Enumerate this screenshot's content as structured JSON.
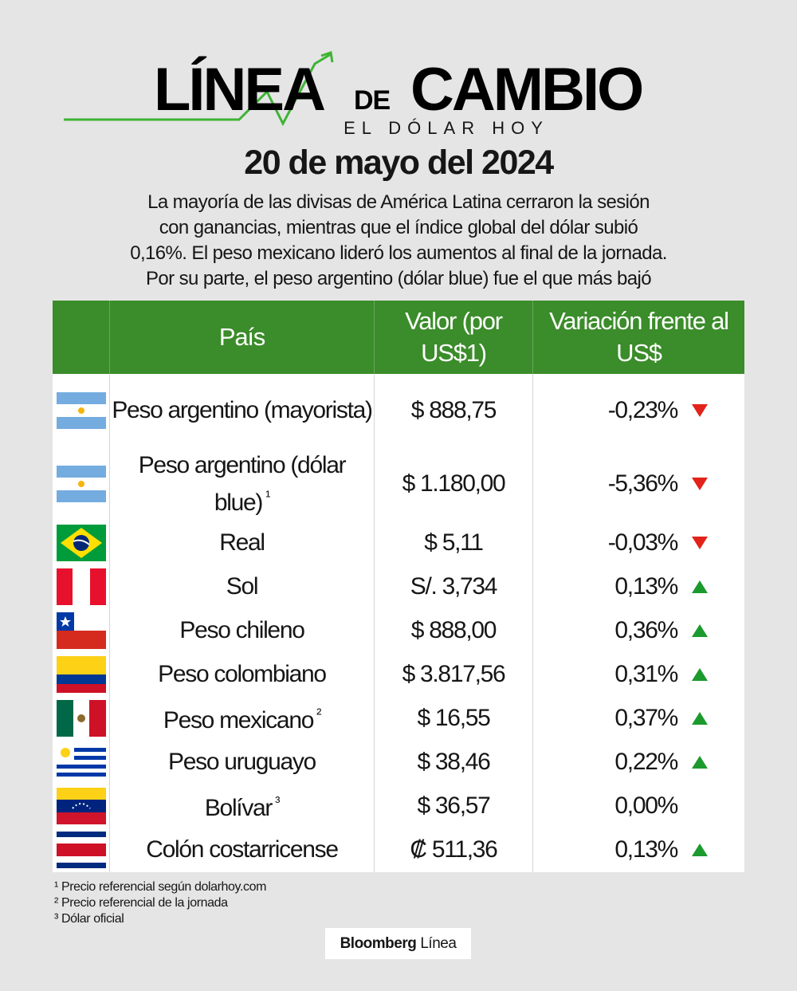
{
  "header": {
    "logo_word1": "LÍNEA",
    "logo_word2": "DE",
    "logo_word3": "CAMBIO",
    "logo_tagline": "EL DÓLAR HOY",
    "date": "20 de mayo del 2024",
    "description_lines": [
      "La mayoría de las divisas de América Latina cerraron la sesión",
      "con ganancias, mientras que el índice global del dólar subió",
      "0,16%. El peso mexicano lideró los aumentos al final de la jornada.",
      "Por su parte, el peso argentino (dólar blue) fue el que más bajó"
    ]
  },
  "table": {
    "columns": [
      "País",
      "Valor (por US$1)",
      "Variación frente al US$"
    ],
    "rows": [
      {
        "name": "Peso argentino (mayorista)",
        "value": "$ 888,75",
        "change": "-0,23%",
        "trend": "down"
      },
      {
        "name": "Peso argentino (dólar blue)",
        "note": "¹",
        "value": "$ 1.180,00",
        "change": "-5,36%",
        "trend": "down"
      },
      {
        "name": "Real",
        "value": "$ 5,11",
        "change": "-0,03%",
        "trend": "down"
      },
      {
        "name": "Sol",
        "value": "S/. 3,734",
        "change": "0,13%",
        "trend": "up"
      },
      {
        "name": "Peso chileno",
        "value": "$ 888,00",
        "change": "0,36%",
        "trend": "up"
      },
      {
        "name": "Peso colombiano",
        "value": "$ 3.817,56",
        "change": "0,31%",
        "trend": "up"
      },
      {
        "name": "Peso mexicano",
        "note": "²",
        "value": "$ 16,55",
        "change": "0,37%",
        "trend": "up"
      },
      {
        "name": "Peso uruguayo",
        "value": "$ 38,46",
        "change": "0,22%",
        "trend": "up"
      },
      {
        "name": "Bolívar",
        "note": "³",
        "value": "$ 36,57",
        "change": "0,00%",
        "trend": null
      },
      {
        "name": "Colón costarricense",
        "value": "₡ 511,36",
        "change": "0,13%",
        "trend": "up"
      }
    ]
  },
  "footnotes": [
    "¹ Precio referencial según dolarhoy.com",
    "² Precio referencial de la jornada",
    "³ Dólar oficial"
  ],
  "brand": {
    "name": "Bloomberg",
    "accent": "Línea"
  }
}
